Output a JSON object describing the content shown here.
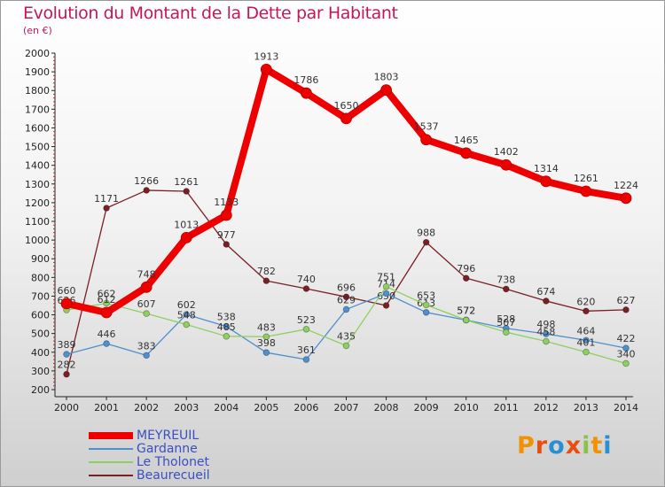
{
  "title": "Evolution du Montant de la Dette par Habitant",
  "subtitle": "(en €)",
  "logo": {
    "text": "Proxiti",
    "letters": [
      {
        "ch": "P",
        "color": "#f39200"
      },
      {
        "ch": "r",
        "color": "#e94e0f"
      },
      {
        "ch": "o",
        "color": "#2a8fd0"
      },
      {
        "ch": "x",
        "color": "#e94e0f"
      },
      {
        "ch": "i",
        "color": "#8bc34a"
      },
      {
        "ch": "t",
        "color": "#f39200"
      },
      {
        "ch": "i",
        "color": "#2a8fd0"
      }
    ]
  },
  "chart_data": {
    "type": "line",
    "title": "Evolution du Montant de la Dette par Habitant",
    "subtitle": "(en €)",
    "x": [
      2000,
      2001,
      2002,
      2003,
      2004,
      2005,
      2006,
      2007,
      2008,
      2009,
      2010,
      2011,
      2012,
      2013,
      2014
    ],
    "ylim": [
      200,
      2000
    ],
    "yticks": [
      200,
      300,
      400,
      500,
      600,
      700,
      800,
      900,
      1000,
      1100,
      1200,
      1300,
      1400,
      1500,
      1600,
      1700,
      1800,
      1900,
      2000
    ],
    "grid": false,
    "legend_position": "bottom-left",
    "series": [
      {
        "name": "MEYREUIL",
        "color": "#ee0000",
        "values": [
          660,
          612,
          748,
          1013,
          1133,
          1913,
          1786,
          1650,
          1803,
          1537,
          1465,
          1402,
          1314,
          1261,
          1224
        ]
      },
      {
        "name": "Gardanne",
        "color": "#4f8fcf",
        "values": [
          389,
          446,
          383,
          602,
          538,
          398,
          361,
          629,
          714,
          613,
          572,
          528,
          498,
          464,
          422
        ]
      },
      {
        "name": "Le Tholonet",
        "color": "#8ed060",
        "values": [
          626,
          662,
          607,
          548,
          485,
          483,
          523,
          435,
          751,
          653,
          572,
          507,
          458,
          401,
          340
        ]
      },
      {
        "name": "Beaurecueil",
        "color": "#7a1f24",
        "values": [
          282,
          1171,
          1266,
          1261,
          977,
          782,
          740,
          696,
          650,
          988,
          796,
          738,
          674,
          620,
          627
        ]
      }
    ]
  }
}
